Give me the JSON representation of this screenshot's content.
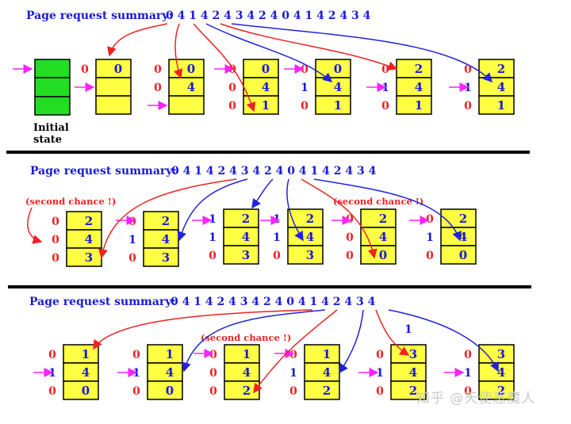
{
  "title_label": "Page request summary:",
  "requests": [
    "0",
    "4",
    "1",
    "4",
    "2",
    "4",
    "3",
    "4",
    "2",
    "4",
    "0",
    "4",
    "1",
    "4",
    "2",
    "4",
    "3",
    "4"
  ],
  "initial_state_label": [
    "Initial",
    "state"
  ],
  "second_chance_label": "(second chance !)",
  "extra_bit_label": "1",
  "watermark": "知乎 @天使恶魔人",
  "colors": {
    "frame_fill": "#ffff44",
    "initial_fill": "#22dd22",
    "red_arrow": "#ee2222",
    "blue_arrow": "#2222dd",
    "magenta_arrow": "#ff22ff",
    "title_color": "#1a1ad6",
    "divider": "#000000"
  },
  "panels": [
    {
      "frames": [
        {
          "label": "initial",
          "empty": true
        },
        {
          "pages": [
            "0",
            "",
            ""
          ],
          "bits": [
            "0",
            "",
            ""
          ]
        },
        {
          "pages": [
            "0",
            "4",
            ""
          ],
          "bits": [
            "0",
            "0",
            ""
          ]
        },
        {
          "pages": [
            "0",
            "4",
            "1"
          ],
          "bits": [
            "0",
            "0",
            "0"
          ]
        },
        {
          "pages": [
            "0",
            "4",
            "1"
          ],
          "bits": [
            "0",
            "1",
            "0"
          ]
        },
        {
          "pages": [
            "2",
            "4",
            "1"
          ],
          "bits": [
            "0",
            "1",
            "0"
          ]
        },
        {
          "pages": [
            "2",
            "4",
            "1"
          ],
          "bits": [
            "0",
            "1",
            "0"
          ]
        }
      ]
    },
    {
      "frames": [
        {
          "pages": [
            "2",
            "4",
            "3"
          ],
          "bits": [
            "0",
            "0",
            "0"
          ]
        },
        {
          "pages": [
            "2",
            "4",
            "3"
          ],
          "bits": [
            "0",
            "1",
            "0"
          ]
        },
        {
          "pages": [
            "2",
            "4",
            "3"
          ],
          "bits": [
            "1",
            "1",
            "0"
          ]
        },
        {
          "pages": [
            "2",
            "4",
            "3"
          ],
          "bits": [
            "1",
            "1",
            "0"
          ]
        },
        {
          "pages": [
            "2",
            "4",
            "0"
          ],
          "bits": [
            "0",
            "0",
            "0"
          ]
        },
        {
          "pages": [
            "2",
            "4",
            "0"
          ],
          "bits": [
            "0",
            "1",
            "0"
          ]
        }
      ]
    },
    {
      "frames": [
        {
          "pages": [
            "1",
            "4",
            "0"
          ],
          "bits": [
            "0",
            "1",
            "0"
          ]
        },
        {
          "pages": [
            "1",
            "4",
            "0"
          ],
          "bits": [
            "0",
            "1",
            "0"
          ]
        },
        {
          "pages": [
            "1",
            "4",
            "2"
          ],
          "bits": [
            "0",
            "0",
            "0"
          ]
        },
        {
          "pages": [
            "1",
            "4",
            "2"
          ],
          "bits": [
            "0",
            "1",
            "0"
          ]
        },
        {
          "pages": [
            "3",
            "4",
            "2"
          ],
          "bits": [
            "0",
            "1",
            "0"
          ]
        },
        {
          "pages": [
            "3",
            "4",
            "2"
          ],
          "bits": [
            "0",
            "1",
            "0"
          ]
        }
      ]
    }
  ]
}
